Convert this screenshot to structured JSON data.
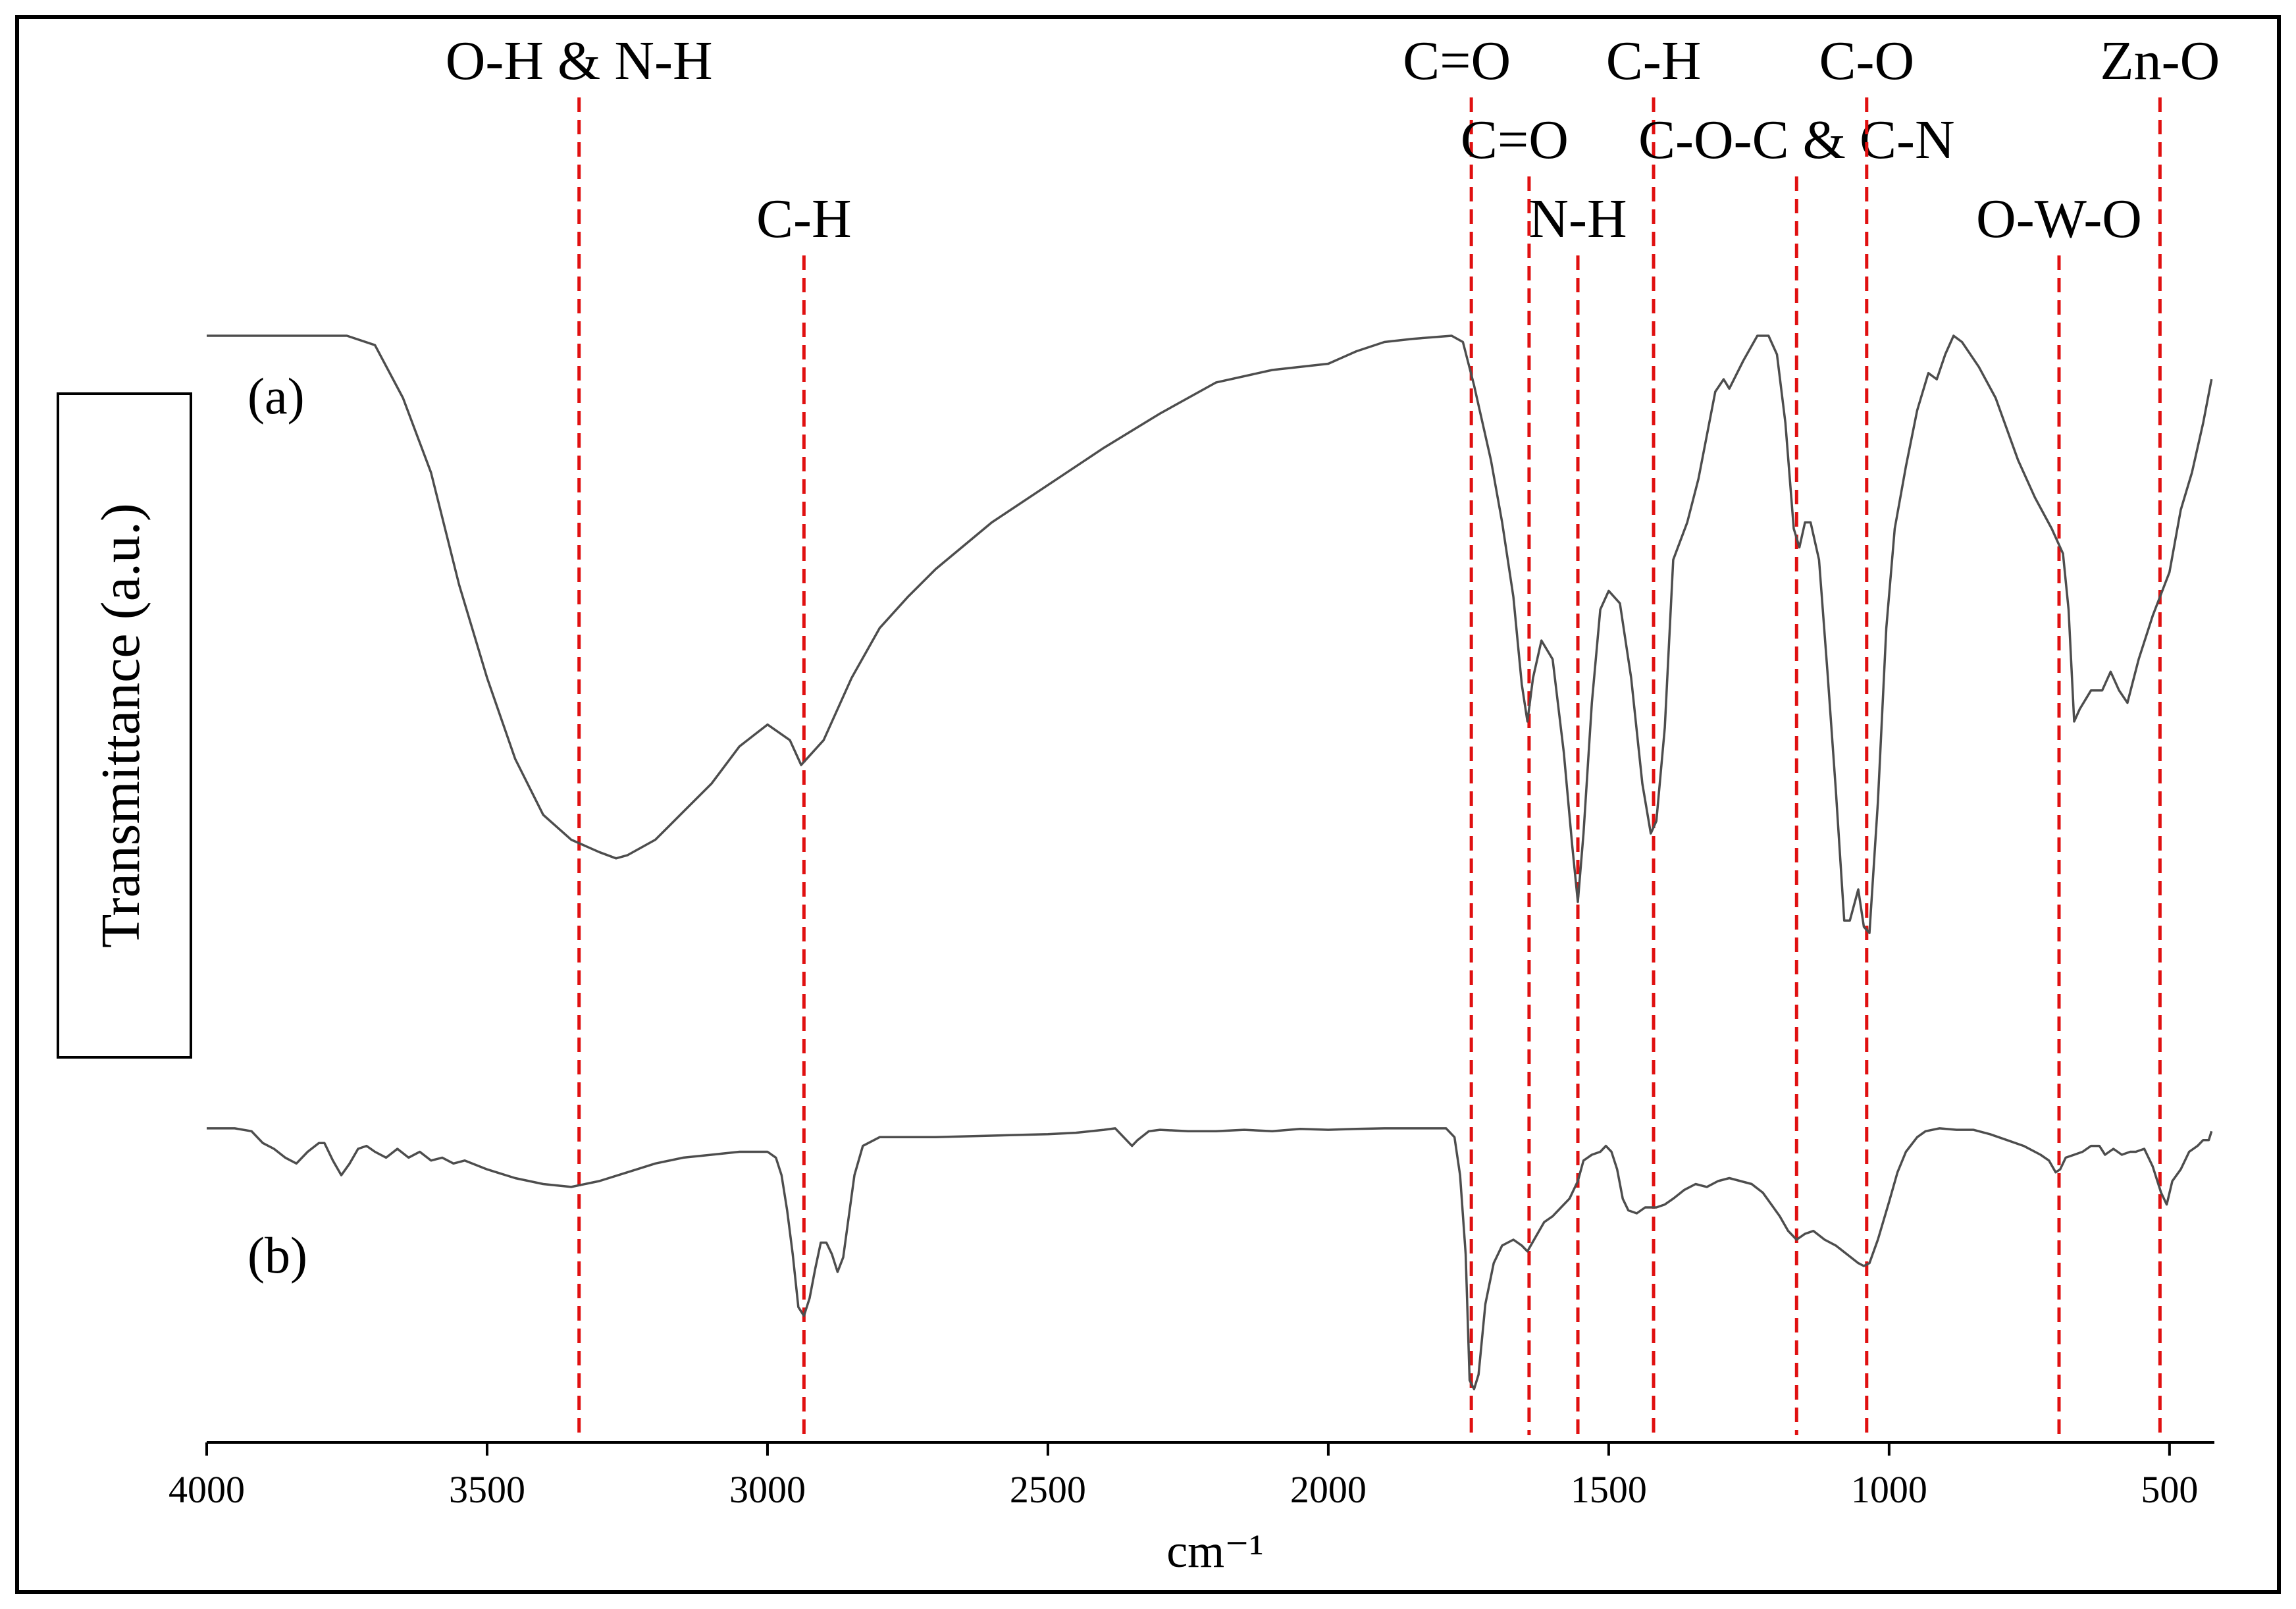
{
  "chart_data": {
    "type": "line",
    "title": "",
    "xlabel": "cm⁻¹",
    "ylabel": "Transmittance (a.u.)",
    "xlim": [
      4000,
      420
    ],
    "xticks": [
      4000,
      3500,
      3000,
      2500,
      2000,
      1500,
      1000,
      500
    ],
    "x_reversed": true,
    "grid": false,
    "series": [
      {
        "name": "(a)",
        "label": "(a)",
        "yrange": [
          0.0,
          1.0
        ],
        "points": [
          [
            4000,
            1.0
          ],
          [
            3750,
            1.0
          ],
          [
            3700,
            0.985
          ],
          [
            3650,
            0.9
          ],
          [
            3600,
            0.78
          ],
          [
            3550,
            0.6
          ],
          [
            3500,
            0.45
          ],
          [
            3450,
            0.32
          ],
          [
            3400,
            0.23
          ],
          [
            3350,
            0.19
          ],
          [
            3300,
            0.17
          ],
          [
            3270,
            0.16
          ],
          [
            3250,
            0.165
          ],
          [
            3200,
            0.19
          ],
          [
            3150,
            0.235
          ],
          [
            3100,
            0.28
          ],
          [
            3050,
            0.34
          ],
          [
            3000,
            0.375
          ],
          [
            2960,
            0.35
          ],
          [
            2940,
            0.31
          ],
          [
            2920,
            0.33
          ],
          [
            2900,
            0.35
          ],
          [
            2850,
            0.45
          ],
          [
            2800,
            0.53
          ],
          [
            2750,
            0.58
          ],
          [
            2700,
            0.625
          ],
          [
            2600,
            0.7
          ],
          [
            2500,
            0.76
          ],
          [
            2400,
            0.82
          ],
          [
            2300,
            0.875
          ],
          [
            2200,
            0.925
          ],
          [
            2100,
            0.945
          ],
          [
            2000,
            0.955
          ],
          [
            1950,
            0.975
          ],
          [
            1900,
            0.99
          ],
          [
            1850,
            0.995
          ],
          [
            1780,
            1.0
          ],
          [
            1760,
            0.99
          ],
          [
            1740,
            0.92
          ],
          [
            1710,
            0.8
          ],
          [
            1690,
            0.7
          ],
          [
            1670,
            0.58
          ],
          [
            1655,
            0.44
          ],
          [
            1645,
            0.38
          ],
          [
            1635,
            0.45
          ],
          [
            1620,
            0.51
          ],
          [
            1600,
            0.48
          ],
          [
            1580,
            0.33
          ],
          [
            1565,
            0.18
          ],
          [
            1555,
            0.09
          ],
          [
            1545,
            0.2
          ],
          [
            1530,
            0.41
          ],
          [
            1515,
            0.56
          ],
          [
            1500,
            0.59
          ],
          [
            1480,
            0.57
          ],
          [
            1460,
            0.45
          ],
          [
            1440,
            0.28
          ],
          [
            1425,
            0.2
          ],
          [
            1415,
            0.22
          ],
          [
            1400,
            0.37
          ],
          [
            1385,
            0.64
          ],
          [
            1360,
            0.7
          ],
          [
            1340,
            0.77
          ],
          [
            1310,
            0.91
          ],
          [
            1295,
            0.93
          ],
          [
            1285,
            0.915
          ],
          [
            1260,
            0.96
          ],
          [
            1235,
            1.0
          ],
          [
            1215,
            1.0
          ],
          [
            1200,
            0.97
          ],
          [
            1185,
            0.86
          ],
          [
            1170,
            0.69
          ],
          [
            1160,
            0.66
          ],
          [
            1150,
            0.7
          ],
          [
            1140,
            0.7
          ],
          [
            1125,
            0.64
          ],
          [
            1110,
            0.46
          ],
          [
            1095,
            0.27
          ],
          [
            1080,
            0.06
          ],
          [
            1070,
            0.06
          ],
          [
            1055,
            0.11
          ],
          [
            1045,
            0.05
          ],
          [
            1035,
            0.04
          ],
          [
            1020,
            0.25
          ],
          [
            1005,
            0.53
          ],
          [
            990,
            0.69
          ],
          [
            970,
            0.79
          ],
          [
            950,
            0.88
          ],
          [
            930,
            0.94
          ],
          [
            915,
            0.93
          ],
          [
            900,
            0.97
          ],
          [
            885,
            1.0
          ],
          [
            870,
            0.99
          ],
          [
            840,
            0.95
          ],
          [
            810,
            0.9
          ],
          [
            770,
            0.8
          ],
          [
            740,
            0.74
          ],
          [
            710,
            0.69
          ],
          [
            690,
            0.65
          ],
          [
            680,
            0.56
          ],
          [
            670,
            0.38
          ],
          [
            660,
            0.4
          ],
          [
            640,
            0.43
          ],
          [
            620,
            0.43
          ],
          [
            605,
            0.46
          ],
          [
            590,
            0.43
          ],
          [
            575,
            0.41
          ],
          [
            555,
            0.48
          ],
          [
            530,
            0.55
          ],
          [
            500,
            0.62
          ],
          [
            480,
            0.72
          ],
          [
            460,
            0.78
          ],
          [
            440,
            0.86
          ],
          [
            425,
            0.93
          ]
        ]
      },
      {
        "name": "(b)",
        "label": "(b)",
        "yrange": [
          0.0,
          1.0
        ],
        "points": [
          [
            4000,
            0.98
          ],
          [
            3950,
            0.98
          ],
          [
            3920,
            0.97
          ],
          [
            3900,
            0.93
          ],
          [
            3880,
            0.91
          ],
          [
            3860,
            0.88
          ],
          [
            3840,
            0.86
          ],
          [
            3820,
            0.9
          ],
          [
            3800,
            0.93
          ],
          [
            3790,
            0.93
          ],
          [
            3775,
            0.87
          ],
          [
            3760,
            0.82
          ],
          [
            3745,
            0.86
          ],
          [
            3730,
            0.91
          ],
          [
            3715,
            0.92
          ],
          [
            3700,
            0.9
          ],
          [
            3680,
            0.88
          ],
          [
            3660,
            0.91
          ],
          [
            3640,
            0.88
          ],
          [
            3620,
            0.9
          ],
          [
            3600,
            0.87
          ],
          [
            3580,
            0.88
          ],
          [
            3560,
            0.86
          ],
          [
            3540,
            0.87
          ],
          [
            3500,
            0.84
          ],
          [
            3450,
            0.81
          ],
          [
            3400,
            0.79
          ],
          [
            3350,
            0.78
          ],
          [
            3300,
            0.8
          ],
          [
            3250,
            0.83
          ],
          [
            3200,
            0.86
          ],
          [
            3150,
            0.88
          ],
          [
            3100,
            0.89
          ],
          [
            3050,
            0.9
          ],
          [
            3000,
            0.9
          ],
          [
            2985,
            0.88
          ],
          [
            2975,
            0.82
          ],
          [
            2965,
            0.7
          ],
          [
            2955,
            0.55
          ],
          [
            2945,
            0.37
          ],
          [
            2935,
            0.34
          ],
          [
            2925,
            0.4
          ],
          [
            2915,
            0.5
          ],
          [
            2905,
            0.59
          ],
          [
            2895,
            0.59
          ],
          [
            2885,
            0.55
          ],
          [
            2875,
            0.49
          ],
          [
            2865,
            0.54
          ],
          [
            2855,
            0.68
          ],
          [
            2845,
            0.82
          ],
          [
            2830,
            0.92
          ],
          [
            2800,
            0.95
          ],
          [
            2700,
            0.95
          ],
          [
            2600,
            0.955
          ],
          [
            2500,
            0.96
          ],
          [
            2450,
            0.965
          ],
          [
            2400,
            0.975
          ],
          [
            2380,
            0.98
          ],
          [
            2360,
            0.94
          ],
          [
            2350,
            0.92
          ],
          [
            2340,
            0.94
          ],
          [
            2320,
            0.97
          ],
          [
            2300,
            0.975
          ],
          [
            2250,
            0.97
          ],
          [
            2200,
            0.97
          ],
          [
            2150,
            0.975
          ],
          [
            2100,
            0.97
          ],
          [
            2050,
            0.978
          ],
          [
            2000,
            0.975
          ],
          [
            1950,
            0.978
          ],
          [
            1900,
            0.98
          ],
          [
            1850,
            0.98
          ],
          [
            1790,
            0.98
          ],
          [
            1775,
            0.95
          ],
          [
            1765,
            0.82
          ],
          [
            1755,
            0.55
          ],
          [
            1748,
            0.12
          ],
          [
            1740,
            0.09
          ],
          [
            1732,
            0.14
          ],
          [
            1720,
            0.38
          ],
          [
            1705,
            0.52
          ],
          [
            1690,
            0.58
          ],
          [
            1670,
            0.6
          ],
          [
            1655,
            0.58
          ],
          [
            1645,
            0.56
          ],
          [
            1630,
            0.61
          ],
          [
            1615,
            0.66
          ],
          [
            1600,
            0.68
          ],
          [
            1585,
            0.71
          ],
          [
            1570,
            0.74
          ],
          [
            1555,
            0.8
          ],
          [
            1545,
            0.87
          ],
          [
            1530,
            0.89
          ],
          [
            1515,
            0.9
          ],
          [
            1505,
            0.92
          ],
          [
            1495,
            0.9
          ],
          [
            1485,
            0.84
          ],
          [
            1475,
            0.74
          ],
          [
            1465,
            0.7
          ],
          [
            1450,
            0.69
          ],
          [
            1435,
            0.71
          ],
          [
            1415,
            0.71
          ],
          [
            1400,
            0.72
          ],
          [
            1385,
            0.74
          ],
          [
            1365,
            0.77
          ],
          [
            1345,
            0.79
          ],
          [
            1325,
            0.78
          ],
          [
            1305,
            0.8
          ],
          [
            1285,
            0.81
          ],
          [
            1265,
            0.8
          ],
          [
            1245,
            0.79
          ],
          [
            1225,
            0.76
          ],
          [
            1210,
            0.72
          ],
          [
            1195,
            0.68
          ],
          [
            1180,
            0.63
          ],
          [
            1165,
            0.6
          ],
          [
            1150,
            0.62
          ],
          [
            1135,
            0.63
          ],
          [
            1115,
            0.6
          ],
          [
            1095,
            0.58
          ],
          [
            1075,
            0.55
          ],
          [
            1055,
            0.52
          ],
          [
            1045,
            0.51
          ],
          [
            1035,
            0.52
          ],
          [
            1020,
            0.6
          ],
          [
            1000,
            0.73
          ],
          [
            985,
            0.83
          ],
          [
            970,
            0.9
          ],
          [
            950,
            0.95
          ],
          [
            935,
            0.97
          ],
          [
            910,
            0.98
          ],
          [
            880,
            0.975
          ],
          [
            850,
            0.975
          ],
          [
            820,
            0.96
          ],
          [
            790,
            0.94
          ],
          [
            760,
            0.92
          ],
          [
            730,
            0.89
          ],
          [
            715,
            0.87
          ],
          [
            703,
            0.83
          ],
          [
            695,
            0.84
          ],
          [
            685,
            0.88
          ],
          [
            670,
            0.89
          ],
          [
            655,
            0.9
          ],
          [
            640,
            0.92
          ],
          [
            625,
            0.92
          ],
          [
            615,
            0.89
          ],
          [
            600,
            0.91
          ],
          [
            585,
            0.89
          ],
          [
            570,
            0.9
          ],
          [
            560,
            0.9
          ],
          [
            545,
            0.91
          ],
          [
            530,
            0.85
          ],
          [
            515,
            0.76
          ],
          [
            505,
            0.72
          ],
          [
            495,
            0.8
          ],
          [
            480,
            0.84
          ],
          [
            465,
            0.9
          ],
          [
            450,
            0.92
          ],
          [
            440,
            0.94
          ],
          [
            430,
            0.94
          ],
          [
            425,
            0.97
          ]
        ]
      }
    ],
    "markers": [
      {
        "x": 3336,
        "label": "O-H & N-H"
      },
      {
        "x": 2935,
        "label": "C-H"
      },
      {
        "x": 1745,
        "label": "C=O"
      },
      {
        "x": 1642,
        "label": "C=O"
      },
      {
        "x": 1555,
        "label": "N-H"
      },
      {
        "x": 1420,
        "label": "C-H"
      },
      {
        "x": 1165,
        "label": "C-O-C & C-N"
      },
      {
        "x": 1040,
        "label": "C-O"
      },
      {
        "x": 697,
        "label": "O-W-O"
      },
      {
        "x": 517,
        "label": "Zn-O"
      }
    ],
    "colors": {
      "line": "#4d4d4d",
      "marker": "#e01010",
      "axis": "#000000",
      "frame": "#000000"
    }
  }
}
